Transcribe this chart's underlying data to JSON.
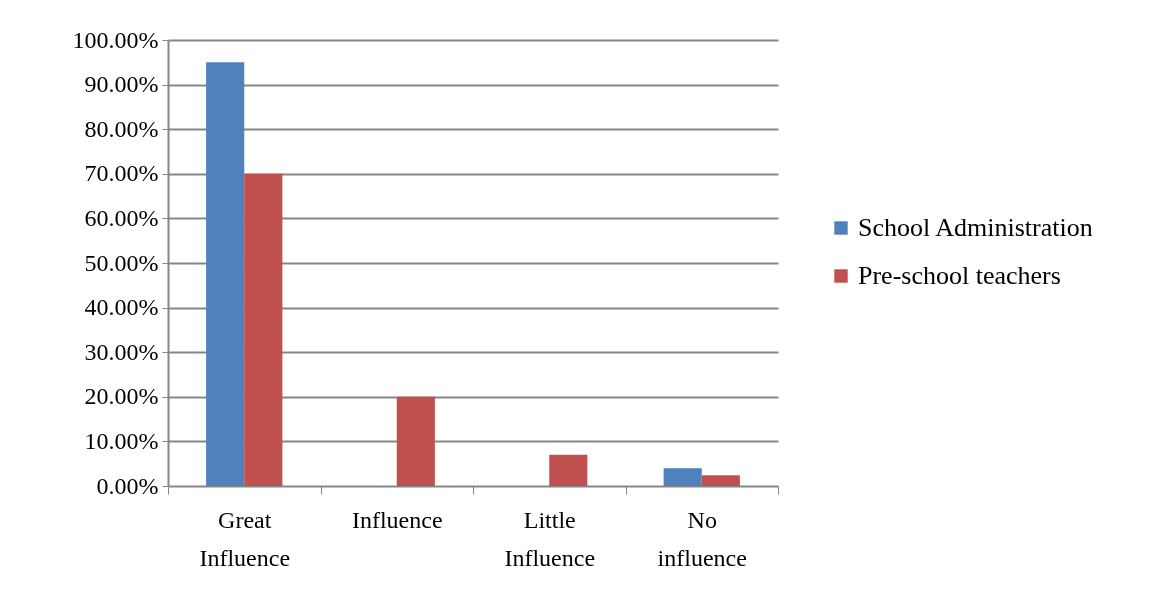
{
  "chart_data": {
    "type": "bar",
    "categories": [
      "Great Influence",
      "Influence",
      "Little Influence",
      "No influence"
    ],
    "series": [
      {
        "name": "School Administration",
        "color": "#4f81bd",
        "values": [
          95,
          0,
          0,
          4
        ]
      },
      {
        "name": "Pre-school teachers",
        "color": "#c0504d",
        "values": [
          70,
          20,
          7,
          2.4
        ]
      }
    ],
    "ylim": [
      0,
      100
    ],
    "yticks": [
      {
        "value": 0,
        "label": "0.00%"
      },
      {
        "value": 10,
        "label": "10.00%"
      },
      {
        "value": 20,
        "label": "20.00%"
      },
      {
        "value": 30,
        "label": "30.00%"
      },
      {
        "value": 40,
        "label": "40.00%"
      },
      {
        "value": 50,
        "label": "50.00%"
      },
      {
        "value": 60,
        "label": "60.00%"
      },
      {
        "value": 70,
        "label": "70.00%"
      },
      {
        "value": 80,
        "label": "80.00%"
      },
      {
        "value": 90,
        "label": "90.00%"
      },
      {
        "value": 100,
        "label": "100.00%"
      }
    ],
    "grid": "y",
    "legend": "right"
  }
}
